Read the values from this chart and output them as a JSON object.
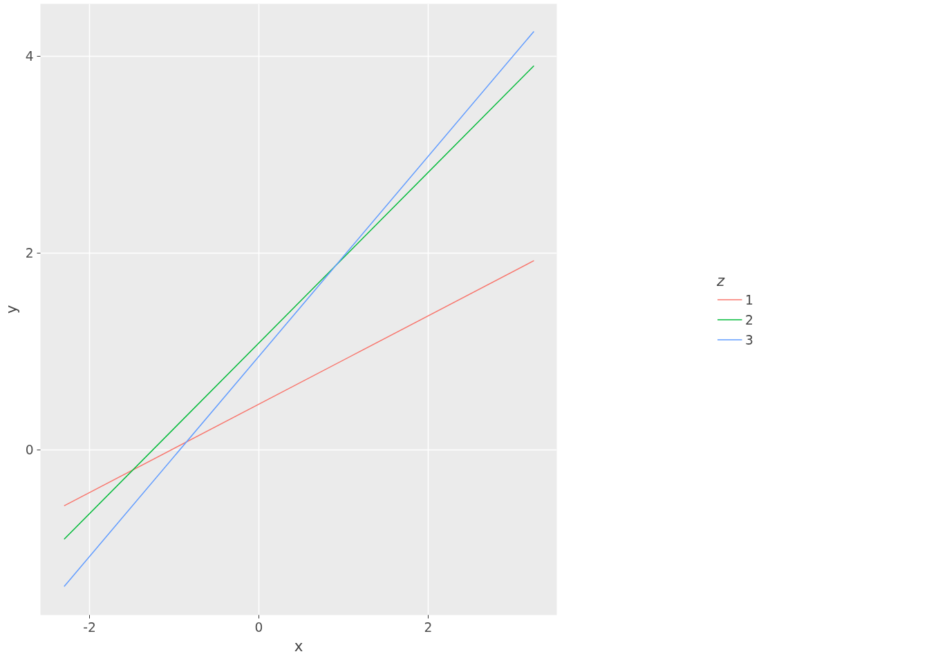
{
  "chart_data": {
    "type": "line",
    "xlabel": "x",
    "ylabel": "y",
    "legend_title": "z",
    "xlim": [
      -2.58,
      3.52
    ],
    "ylim": [
      -1.68,
      4.53
    ],
    "xticks": [
      -2,
      0,
      2
    ],
    "yticks": [
      0,
      2,
      4
    ],
    "grid": true,
    "legend": "right",
    "x": [
      -2.3,
      3.25
    ],
    "series": [
      {
        "name": "1",
        "color": "#f8766d",
        "values": [
          -0.57,
          1.92
        ]
      },
      {
        "name": "2",
        "color": "#00ba38",
        "values": [
          -0.91,
          3.9
        ]
      },
      {
        "name": "3",
        "color": "#619cff",
        "values": [
          -1.39,
          4.25
        ]
      }
    ]
  }
}
